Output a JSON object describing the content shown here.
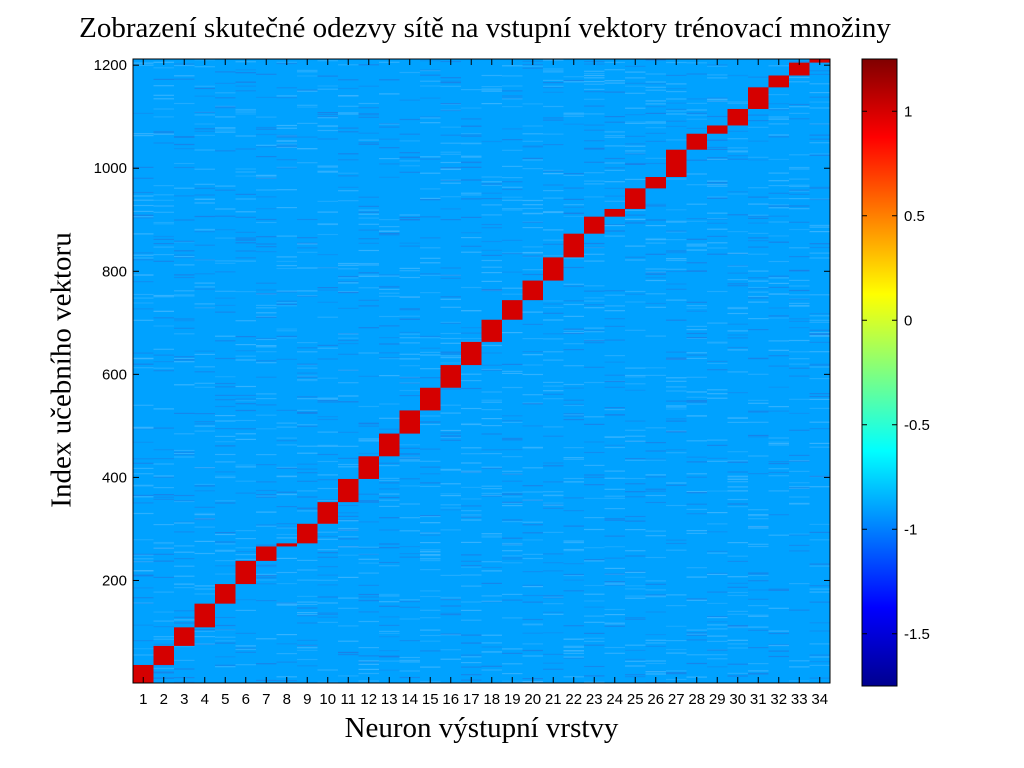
{
  "chart_data": {
    "type": "heatmap",
    "title": "Zobrazení skutečné odezvy sítě na vstupní vektory trénovací množiny",
    "xlabel": "Neuron výstupní vrstvy",
    "ylabel": "Index učebního vektoru",
    "x_categories": [
      "1",
      "2",
      "3",
      "4",
      "5",
      "6",
      "7",
      "8",
      "9",
      "10",
      "11",
      "12",
      "13",
      "14",
      "15",
      "16",
      "17",
      "18",
      "19",
      "20",
      "21",
      "22",
      "23",
      "24",
      "25",
      "26",
      "27",
      "28",
      "29",
      "30",
      "31",
      "32",
      "33",
      "34"
    ],
    "y_ticks": [
      200,
      400,
      600,
      800,
      1000,
      1200
    ],
    "y_tick_labels": [
      "200",
      "400",
      "600",
      "800",
      "1000",
      "1200"
    ],
    "ylim": [
      1,
      1212
    ],
    "colormap": "jet",
    "clim": [
      -1.75,
      1.25
    ],
    "colorbar_ticks": [
      1,
      0.5,
      0,
      -0.5,
      -1,
      -1.5
    ],
    "colorbar_tick_labels": [
      "1",
      "0.5",
      "0",
      "-0.5",
      "-1",
      "-1.5"
    ],
    "background_value": -0.9,
    "active_value": 1.0,
    "active_blocks": [
      {
        "neuron": 1,
        "start": 1,
        "end": 36
      },
      {
        "neuron": 2,
        "start": 36,
        "end": 73
      },
      {
        "neuron": 3,
        "start": 73,
        "end": 109
      },
      {
        "neuron": 4,
        "start": 109,
        "end": 155
      },
      {
        "neuron": 5,
        "start": 155,
        "end": 193
      },
      {
        "neuron": 6,
        "start": 193,
        "end": 238
      },
      {
        "neuron": 7,
        "start": 238,
        "end": 266
      },
      {
        "neuron": 8,
        "start": 266,
        "end": 272
      },
      {
        "neuron": 9,
        "start": 272,
        "end": 310
      },
      {
        "neuron": 10,
        "start": 310,
        "end": 352
      },
      {
        "neuron": 11,
        "start": 352,
        "end": 397
      },
      {
        "neuron": 12,
        "start": 397,
        "end": 441
      },
      {
        "neuron": 13,
        "start": 441,
        "end": 485
      },
      {
        "neuron": 14,
        "start": 485,
        "end": 530
      },
      {
        "neuron": 15,
        "start": 530,
        "end": 574
      },
      {
        "neuron": 16,
        "start": 574,
        "end": 618
      },
      {
        "neuron": 17,
        "start": 618,
        "end": 663
      },
      {
        "neuron": 18,
        "start": 663,
        "end": 706
      },
      {
        "neuron": 19,
        "start": 706,
        "end": 744
      },
      {
        "neuron": 20,
        "start": 744,
        "end": 782
      },
      {
        "neuron": 21,
        "start": 782,
        "end": 827
      },
      {
        "neuron": 22,
        "start": 827,
        "end": 873
      },
      {
        "neuron": 23,
        "start": 873,
        "end": 906
      },
      {
        "neuron": 24,
        "start": 906,
        "end": 921
      },
      {
        "neuron": 25,
        "start": 921,
        "end": 961
      },
      {
        "neuron": 26,
        "start": 961,
        "end": 983
      },
      {
        "neuron": 27,
        "start": 983,
        "end": 1036
      },
      {
        "neuron": 28,
        "start": 1036,
        "end": 1067
      },
      {
        "neuron": 29,
        "start": 1067,
        "end": 1083
      },
      {
        "neuron": 30,
        "start": 1083,
        "end": 1115
      },
      {
        "neuron": 31,
        "start": 1115,
        "end": 1157
      },
      {
        "neuron": 32,
        "start": 1157,
        "end": 1180
      },
      {
        "neuron": 33,
        "start": 1180,
        "end": 1205
      },
      {
        "neuron": 34,
        "start": 1205,
        "end": 1212
      }
    ]
  }
}
